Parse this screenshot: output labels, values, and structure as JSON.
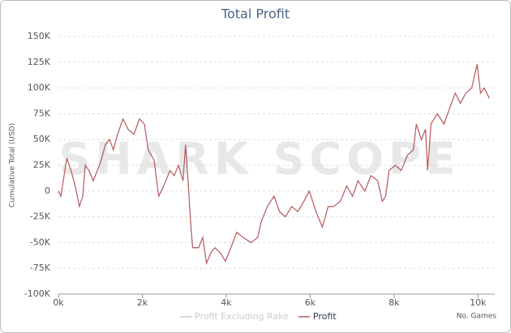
{
  "chart_data": {
    "type": "line",
    "title": "Total Profit",
    "watermark": "SHARK SCOPE",
    "x_label": "No. Games",
    "y_label": "Cumulative Total (USD)",
    "xlim": [
      0,
      10400
    ],
    "ylim": [
      -100000,
      150000
    ],
    "xticks": [
      {
        "value": 0,
        "label": "0k"
      },
      {
        "value": 2000,
        "label": "2k"
      },
      {
        "value": 4000,
        "label": "4k"
      },
      {
        "value": 6000,
        "label": "6k"
      },
      {
        "value": 8000,
        "label": "8k"
      },
      {
        "value": 10000,
        "label": "10k"
      }
    ],
    "yticks": [
      {
        "value": -100000,
        "label": "-100K"
      },
      {
        "value": -75000,
        "label": "-75K"
      },
      {
        "value": -50000,
        "label": "-50K"
      },
      {
        "value": -25000,
        "label": "-25K"
      },
      0,
      {
        "value": 25000,
        "label": "25K"
      },
      {
        "value": 50000,
        "label": "50K"
      },
      {
        "value": 75000,
        "label": "75K"
      },
      {
        "value": 100000,
        "label": "100K"
      },
      {
        "value": 125000,
        "label": "125K"
      },
      {
        "value": 150000,
        "label": "150K"
      }
    ],
    "grid": true,
    "x": [
      0,
      60,
      200,
      300,
      400,
      500,
      580,
      640,
      730,
      830,
      930,
      1020,
      1120,
      1220,
      1310,
      1410,
      1540,
      1660,
      1800,
      1930,
      2050,
      2140,
      2280,
      2390,
      2510,
      2660,
      2760,
      2860,
      2970,
      3030,
      3090,
      3150,
      3200,
      3340,
      3440,
      3530,
      3630,
      3730,
      3860,
      3980,
      4110,
      4250,
      4400,
      4590,
      4750,
      4830,
      4980,
      5140,
      5270,
      5410,
      5560,
      5710,
      5850,
      5980,
      6140,
      6290,
      6430,
      6560,
      6720,
      6870,
      7010,
      7140,
      7300,
      7450,
      7610,
      7720,
      7800,
      7880,
      8030,
      8170,
      8320,
      8460,
      8530,
      8650,
      8750,
      8800,
      8880,
      9030,
      9190,
      9320,
      9460,
      9580,
      9710,
      9850,
      9980,
      10060,
      10150,
      10270
    ],
    "series": [
      {
        "name": "Profit Excluding Rake",
        "color": "#cccccc"
      },
      {
        "name": "Profit",
        "color": "#b5585a",
        "values": [
          0,
          -5000,
          32000,
          20000,
          5000,
          -15000,
          -5000,
          25000,
          20000,
          10000,
          20000,
          30000,
          45000,
          50000,
          40000,
          55000,
          70000,
          60000,
          55000,
          70000,
          65000,
          40000,
          30000,
          -5000,
          5000,
          20000,
          15000,
          25000,
          10000,
          45000,
          10000,
          -30000,
          -55000,
          -55000,
          -45000,
          -70000,
          -60000,
          -55000,
          -60000,
          -68000,
          -55000,
          -40000,
          -45000,
          -50000,
          -45000,
          -30000,
          -15000,
          -5000,
          -20000,
          -25000,
          -15000,
          -20000,
          -10000,
          0,
          -20000,
          -35000,
          -15000,
          -15000,
          -10000,
          5000,
          -5000,
          10000,
          0,
          15000,
          10000,
          -10000,
          -5000,
          20000,
          25000,
          20000,
          35000,
          40000,
          65000,
          50000,
          60000,
          20000,
          65000,
          75000,
          65000,
          80000,
          95000,
          85000,
          95000,
          100000,
          123000,
          95000,
          100000,
          90000
        ]
      }
    ]
  }
}
